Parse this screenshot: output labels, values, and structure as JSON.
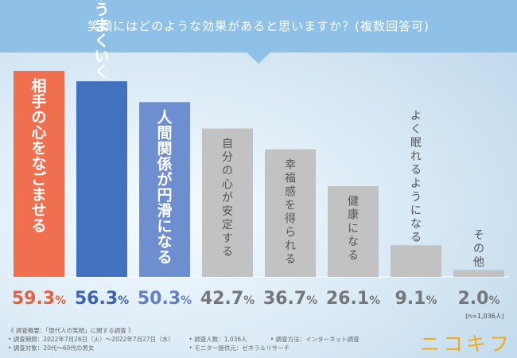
{
  "chart_data": {
    "type": "bar",
    "title": "笑顔にはどのような効果があると思いますか？(複数回答可)",
    "categories": [
      "相手の心をなごませる",
      "コミュニケーションがうまくいく",
      "人間関係が円滑になる",
      "自分の心が安定する",
      "幸福感を得られる",
      "健康になる",
      "よく眠れるようになる",
      "その他"
    ],
    "values": [
      59.3,
      56.3,
      50.3,
      42.7,
      36.7,
      26.1,
      9.1,
      2.0
    ],
    "value_labels": [
      "59.3%",
      "56.3%",
      "50.3%",
      "42.7%",
      "36.7%",
      "26.1%",
      "9.1%",
      "2.0%"
    ],
    "ylim": [
      0,
      60
    ],
    "colors": [
      "#ef6f4f",
      "#4271bf",
      "#6e8fcf",
      "#c2c2c2",
      "#c2c2c2",
      "#c2c2c2",
      "#c2c2c2",
      "#c2c2c2"
    ],
    "label_colors": [
      "#e4603f",
      "#3a63b4",
      "#5f80c2",
      "#777777",
      "#777777",
      "#777777",
      "#777777",
      "#777777"
    ],
    "sample_note": "(n=1,036人)"
  },
  "footnote": {
    "heading": "《 調査概要：「現代人の笑顔」に関する調査 》",
    "period": "• 調査期間：2022年7月26日（火）～2022年7月27日（水）",
    "count": "• 調査人数：1,036人",
    "method": "• 調査方法：インターネット調査",
    "target": "• 調査対象：20代～60代の男女",
    "provider": "• モニター提供元：ゼネラルリサーチ"
  },
  "logo_text": "ニコキフ"
}
